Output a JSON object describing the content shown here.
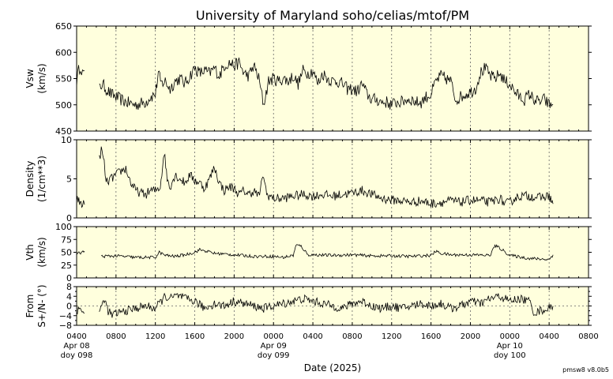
{
  "chart_data": {
    "type": "line",
    "title": "University of Maryland  soho/celias/mtof/PM",
    "xlabel": "Date (2025)",
    "footer": "pmsw8 v8.0b5",
    "x_range_hours": [
      4,
      52
    ],
    "x_ticks": [
      {
        "h": 4,
        "lines": [
          "0400",
          "Apr 08",
          "doy 098"
        ]
      },
      {
        "h": 8,
        "lines": [
          "0800"
        ]
      },
      {
        "h": 12,
        "lines": [
          "1200"
        ]
      },
      {
        "h": 16,
        "lines": [
          "1600"
        ]
      },
      {
        "h": 20,
        "lines": [
          "2000"
        ]
      },
      {
        "h": 24,
        "lines": [
          "0000",
          "Apr 09",
          "doy 099"
        ]
      },
      {
        "h": 28,
        "lines": [
          "0400"
        ]
      },
      {
        "h": 32,
        "lines": [
          "0800"
        ]
      },
      {
        "h": 36,
        "lines": [
          "1200"
        ]
      },
      {
        "h": 40,
        "lines": [
          "1600"
        ]
      },
      {
        "h": 44,
        "lines": [
          "2000"
        ]
      },
      {
        "h": 48,
        "lines": [
          "0000",
          "Apr 10",
          "doy 100"
        ]
      },
      {
        "h": 52,
        "lines": [
          "0400"
        ]
      },
      {
        "h": 56,
        "lines": [
          "0800"
        ]
      }
    ],
    "panels": [
      {
        "id": "vsw",
        "ylabel_lines": [
          "Vsw",
          "(km/s)"
        ],
        "ylim": [
          450,
          650
        ],
        "yticks": [
          "450",
          "500",
          "550",
          "600",
          "650"
        ],
        "ytick_values": [
          450,
          500,
          550,
          600,
          650
        ],
        "zero_line": false,
        "noise": 12,
        "segments": [
          {
            "x": [
              4.0,
              4.2,
              4.4,
              4.6,
              4.8
            ],
            "y": [
              545,
              565,
              575,
              560,
              565
            ]
          },
          {
            "x": [
              6.3,
              6.6,
              7.0,
              7.5,
              8.0,
              8.5,
              9.0,
              10.0,
              11.0,
              11.5,
              12.0,
              12.3,
              12.6,
              13.0,
              13.5,
              14.0,
              14.5,
              15.0,
              15.5,
              16.0,
              16.5,
              17.0,
              17.5,
              18.0,
              18.5,
              19.0,
              19.5,
              20.0,
              20.5,
              21.0,
              21.5,
              22.0,
              22.5,
              23.0,
              23.5,
              24.0,
              24.5,
              25.0,
              25.5,
              26.0,
              26.5,
              27.0,
              27.5,
              28.0,
              28.5,
              29.0,
              29.5,
              30.0,
              30.5,
              31.0,
              31.5,
              32.0,
              32.5,
              33.0,
              33.5,
              34.0,
              34.5,
              35.0,
              35.5,
              36.0,
              36.5,
              37.0,
              37.5,
              38.0,
              38.5,
              39.0,
              39.5,
              40.0,
              40.5,
              41.0,
              41.5,
              42.0,
              42.5,
              43.0,
              43.5,
              44.0,
              44.5,
              45.0,
              45.5,
              46.0,
              46.5,
              47.0,
              47.5,
              48.0,
              48.5,
              49.0,
              49.5,
              50.0,
              50.5,
              51.0,
              51.5,
              52.0,
              52.4
            ],
            "y": [
              530,
              540,
              530,
              520,
              515,
              510,
              505,
              500,
              505,
              515,
              520,
              560,
              540,
              545,
              530,
              545,
              550,
              540,
              555,
              570,
              560,
              565,
              560,
              570,
              555,
              575,
              580,
              575,
              580,
              560,
              555,
              575,
              550,
              500,
              545,
              550,
              545,
              550,
              545,
              555,
              540,
              565,
              560,
              565,
              540,
              560,
              550,
              545,
              545,
              540,
              530,
              530,
              525,
              540,
              520,
              510,
              510,
              505,
              505,
              500,
              505,
              505,
              510,
              510,
              505,
              505,
              515,
              520,
              545,
              555,
              550,
              545,
              510,
              515,
              520,
              525,
              530,
              560,
              570,
              555,
              550,
              560,
              545,
              540,
              525,
              515,
              510,
              520,
              510,
              505,
              510,
              500,
              500
            ]
          }
        ]
      },
      {
        "id": "density",
        "ylabel_lines": [
          "Density",
          "(1/cm**3)"
        ],
        "ylim": [
          0,
          10
        ],
        "yticks": [
          "0",
          "5",
          "10"
        ],
        "ytick_values": [
          0,
          5,
          10
        ],
        "zero_line": false,
        "noise": 0.6,
        "segments": [
          {
            "x": [
              4.0,
              4.3,
              4.6,
              4.8
            ],
            "y": [
              2.5,
              2.0,
              1.8,
              1.7
            ]
          },
          {
            "x": [
              6.3,
              6.5,
              6.8,
              7.0,
              7.5,
              8.0,
              8.5,
              9.0,
              9.5,
              10.0,
              10.5,
              11.0,
              11.5,
              12.0,
              12.5,
              12.9,
              13.2,
              13.5,
              14.0,
              14.5,
              15.0,
              15.5,
              16.0,
              16.5,
              17.0,
              17.5,
              18.0,
              18.5,
              19.0,
              19.5,
              20.0,
              20.5,
              21.0,
              21.5,
              22.0,
              22.5,
              23.0,
              23.3,
              23.6,
              24.0,
              25.0,
              26.0,
              27.0,
              28.0,
              29.0,
              30.0,
              31.0,
              32.0,
              33.0,
              34.0,
              35.0,
              36.0,
              37.0,
              38.0,
              39.0,
              40.0,
              41.0,
              42.0,
              43.0,
              44.0,
              45.0,
              46.0,
              47.0,
              47.5,
              48.0,
              48.5,
              49.0,
              50.0,
              51.0,
              52.0,
              52.4
            ],
            "y": [
              7.5,
              8.8,
              7.0,
              4.5,
              5.0,
              5.5,
              6.0,
              6.3,
              4.5,
              3.5,
              3.2,
              3.0,
              3.5,
              3.5,
              4.0,
              8.5,
              5.0,
              4.0,
              5.5,
              5.0,
              4.5,
              5.5,
              4.8,
              4.5,
              3.8,
              5.0,
              6.5,
              4.5,
              3.5,
              4.0,
              3.8,
              3.0,
              3.5,
              3.0,
              3.5,
              2.8,
              5.5,
              3.0,
              2.8,
              2.5,
              2.5,
              2.8,
              3.0,
              2.8,
              3.0,
              2.8,
              3.0,
              3.2,
              3.5,
              3.0,
              2.5,
              2.3,
              2.2,
              2.0,
              2.2,
              1.8,
              2.0,
              2.2,
              2.0,
              2.3,
              2.2,
              2.0,
              2.5,
              1.8,
              2.0,
              2.5,
              2.8,
              2.8,
              2.6,
              2.8,
              1.8
            ]
          }
        ]
      },
      {
        "id": "vth",
        "ylabel_lines": [
          "Vth",
          "(km/s)"
        ],
        "ylim": [
          0,
          100
        ],
        "yticks": [
          "0",
          "25",
          "50",
          "75",
          "100"
        ],
        "ytick_values": [
          0,
          25,
          50,
          75,
          100
        ],
        "zero_line": false,
        "noise": 3,
        "segments": [
          {
            "x": [
              4.0,
              4.4,
              4.8
            ],
            "y": [
              47,
              49,
              52
            ]
          },
          {
            "x": [
              6.5,
              8.0,
              10.0,
              12.0,
              12.4,
              13.0,
              14.0,
              15.0,
              16.0,
              16.5,
              17.0,
              18.0,
              20.0,
              22.0,
              24.0,
              25.0,
              26.0,
              26.3,
              26.8,
              27.5,
              28.0,
              30.0,
              32.0,
              34.0,
              36.0,
              38.0,
              40.0,
              40.5,
              41.0,
              42.0,
              44.0,
              46.0,
              46.5,
              47.0,
              48.0,
              50.0,
              52.0,
              52.4
            ],
            "y": [
              42,
              43,
              40,
              40,
              50,
              44,
              42,
              45,
              50,
              55,
              53,
              48,
              45,
              42,
              42,
              40,
              44,
              64,
              62,
              45,
              45,
              44,
              45,
              43,
              43,
              42,
              44,
              52,
              48,
              45,
              45,
              44,
              63,
              58,
              44,
              38,
              36,
              45
            ]
          }
        ]
      },
      {
        "id": "from",
        "ylabel_lines": [
          "From",
          "S+/N- (°)"
        ],
        "ylim": [
          -8,
          8
        ],
        "yticks": [
          "−8",
          "−4",
          "0",
          "4",
          "8"
        ],
        "ytick_values": [
          -8,
          -4,
          0,
          4,
          8
        ],
        "extra_ticks": [
          -6,
          -2,
          2,
          6
        ],
        "zero_line": true,
        "noise": 1.8,
        "segments": [
          {
            "x": [
              4.0,
              4.4,
              4.8
            ],
            "y": [
              -2,
              -1,
              -3
            ]
          },
          {
            "x": [
              6.3,
              6.8,
              7.2,
              7.6,
              8.0,
              9.0,
              10.0,
              11.0,
              12.0,
              13.0,
              13.5,
              14.0,
              14.5,
              15.0,
              16.0,
              17.0,
              18.0,
              19.0,
              20.0,
              21.0,
              22.0,
              23.0,
              24.0,
              25.0,
              26.0,
              27.0,
              28.0,
              29.0,
              30.0,
              31.0,
              32.0,
              33.0,
              34.0,
              35.0,
              36.0,
              37.0,
              38.0,
              39.0,
              40.0,
              41.0,
              42.0,
              43.0,
              44.0,
              45.0,
              46.0,
              47.0,
              48.0,
              49.0,
              50.0,
              50.5,
              51.0,
              52.0,
              52.4
            ],
            "y": [
              -3,
              3,
              -2,
              -4,
              -3,
              -2,
              -1,
              0,
              -1,
              4,
              3,
              4,
              4,
              3,
              2,
              -1,
              1,
              0,
              2,
              1,
              0,
              -1,
              0,
              1,
              2,
              3,
              2,
              1,
              0,
              -1,
              1,
              2,
              0,
              -1,
              0,
              -1,
              0,
              1,
              0,
              1,
              -1,
              0,
              2,
              1,
              3,
              4,
              2,
              3,
              2,
              -3,
              -2,
              -1,
              0
            ]
          }
        ]
      }
    ]
  }
}
